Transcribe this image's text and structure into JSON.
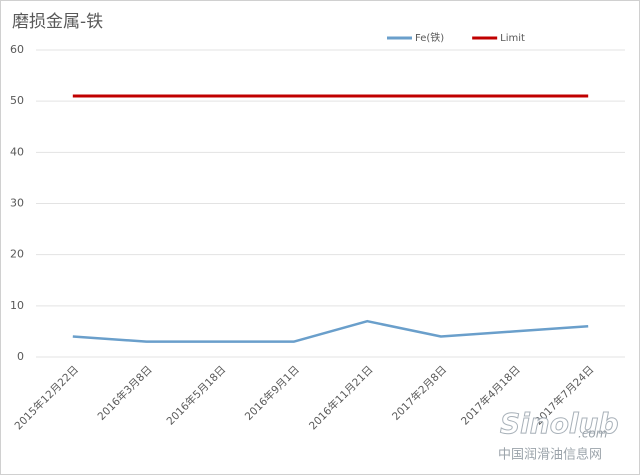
{
  "chart_data": {
    "type": "line",
    "title": "磨损金属-铁",
    "categories": [
      "2015年12月22日",
      "2016年3月8日",
      "2016年5月18日",
      "2016年9月1日",
      "2016年11月21日",
      "2017年2月8日",
      "2017年4月18日",
      "2017年7月24日"
    ],
    "series": [
      {
        "name": "Fe(铁)",
        "color": "#6a9fcb",
        "values": [
          4,
          3,
          3,
          3,
          7,
          4,
          5,
          6
        ]
      },
      {
        "name": "Limit",
        "color": "#c00000",
        "values": [
          51,
          51,
          51,
          51,
          51,
          51,
          51,
          51
        ]
      }
    ],
    "ylim": [
      0,
      60
    ],
    "yticks": [
      0,
      10,
      20,
      30,
      40,
      50,
      60
    ],
    "grid": true,
    "legend": "top-right",
    "watermark": {
      "logo": "Sinolub",
      "domain": ".com",
      "site": "中国润滑油信息网"
    }
  }
}
